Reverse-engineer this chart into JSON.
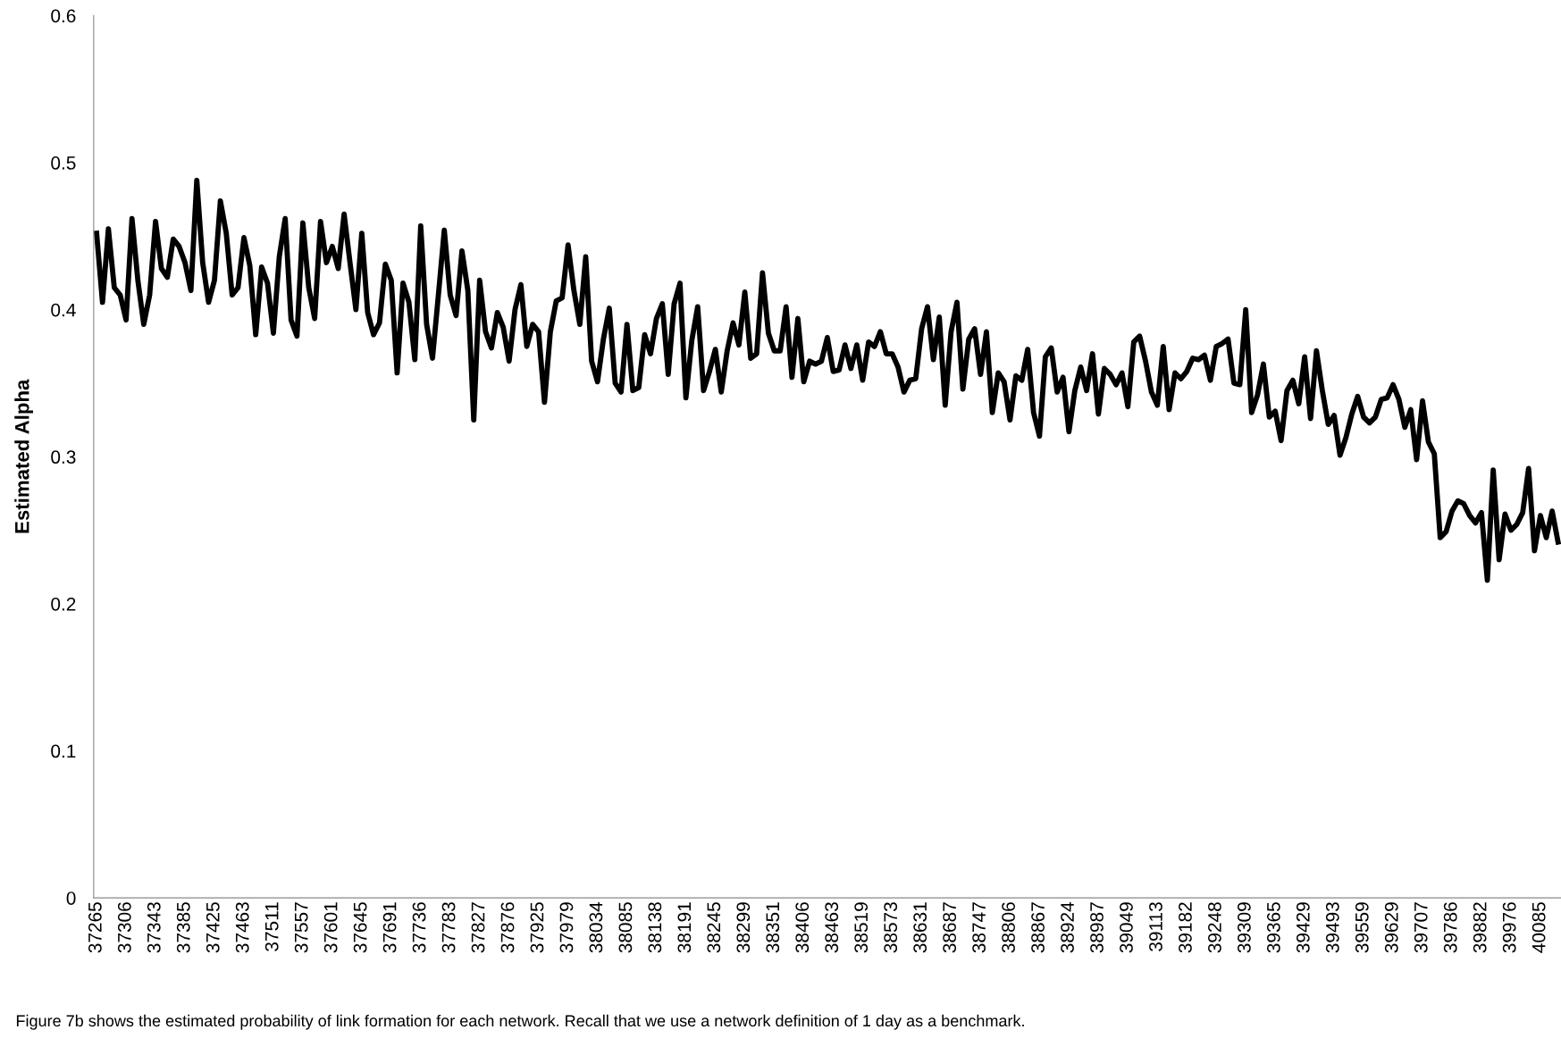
{
  "chart_data": {
    "type": "line",
    "ylabel": "Estimated Alpha",
    "annotations": [
      "Figure 7b shows the estimated probability of link formation for each network. Recall that we use a network definition of 1 day as a benchmark."
    ],
    "categories": [
      "37265",
      null,
      null,
      null,
      null,
      "37306",
      null,
      null,
      null,
      null,
      "37343",
      null,
      null,
      null,
      null,
      "37385",
      null,
      null,
      null,
      null,
      "37425",
      null,
      null,
      null,
      null,
      "37463",
      null,
      null,
      null,
      null,
      "37511",
      null,
      null,
      null,
      null,
      "37557",
      null,
      null,
      null,
      null,
      "37601",
      null,
      null,
      null,
      null,
      "37645",
      null,
      null,
      null,
      null,
      "37691",
      null,
      null,
      null,
      null,
      "37736",
      null,
      null,
      null,
      null,
      "37783",
      null,
      null,
      null,
      null,
      "37827",
      null,
      null,
      null,
      null,
      "37876",
      null,
      null,
      null,
      null,
      "37925",
      null,
      null,
      null,
      null,
      "37979",
      null,
      null,
      null,
      null,
      "38034",
      null,
      null,
      null,
      null,
      "38085",
      null,
      null,
      null,
      null,
      "38138",
      null,
      null,
      null,
      null,
      "38191",
      null,
      null,
      null,
      null,
      "38245",
      null,
      null,
      null,
      null,
      "38299",
      null,
      null,
      null,
      null,
      "38351",
      null,
      null,
      null,
      null,
      "38406",
      null,
      null,
      null,
      null,
      "38463",
      null,
      null,
      null,
      null,
      "38519",
      null,
      null,
      null,
      null,
      "38573",
      null,
      null,
      null,
      null,
      "38631",
      null,
      null,
      null,
      null,
      "38687",
      null,
      null,
      null,
      null,
      "38747",
      null,
      null,
      null,
      null,
      "38806",
      null,
      null,
      null,
      null,
      "38867",
      null,
      null,
      null,
      null,
      "38924",
      null,
      null,
      null,
      null,
      "38987",
      null,
      null,
      null,
      null,
      "39049",
      null,
      null,
      null,
      null,
      "39113",
      null,
      null,
      null,
      null,
      "39182",
      null,
      null,
      null,
      null,
      "39248",
      null,
      null,
      null,
      null,
      "39309",
      null,
      null,
      null,
      null,
      "39365",
      null,
      null,
      null,
      null,
      "39429",
      null,
      null,
      null,
      null,
      "39493",
      null,
      null,
      null,
      null,
      "39559",
      null,
      null,
      null,
      null,
      "39629",
      null,
      null,
      null,
      null,
      "39707",
      null,
      null,
      null,
      null,
      "39786",
      null,
      null,
      null,
      null,
      "39882",
      null,
      null,
      null,
      null,
      "39976",
      null,
      null,
      null,
      null,
      "40085",
      null,
      null,
      null
    ],
    "series": [
      {
        "color": "#000000",
        "values": [
          0.452,
          0.405,
          0.455,
          0.415,
          0.41,
          0.393,
          0.462,
          0.42,
          0.39,
          0.41,
          0.46,
          0.428,
          0.422,
          0.448,
          0.443,
          0.432,
          0.413,
          0.488,
          0.432,
          0.405,
          0.42,
          0.474,
          0.452,
          0.41,
          0.415,
          0.449,
          0.43,
          0.383,
          0.429,
          0.418,
          0.384,
          0.436,
          0.462,
          0.393,
          0.382,
          0.459,
          0.415,
          0.394,
          0.46,
          0.432,
          0.443,
          0.428,
          0.465,
          0.432,
          0.4,
          0.452,
          0.398,
          0.383,
          0.391,
          0.431,
          0.42,
          0.357,
          0.418,
          0.405,
          0.366,
          0.457,
          0.39,
          0.367,
          0.41,
          0.454,
          0.41,
          0.396,
          0.44,
          0.413,
          0.325,
          0.42,
          0.385,
          0.374,
          0.398,
          0.388,
          0.365,
          0.4,
          0.417,
          0.375,
          0.39,
          0.385,
          0.337,
          0.385,
          0.406,
          0.408,
          0.444,
          0.413,
          0.39,
          0.436,
          0.365,
          0.351,
          0.38,
          0.401,
          0.35,
          0.344,
          0.39,
          0.345,
          0.347,
          0.383,
          0.37,
          0.394,
          0.404,
          0.356,
          0.404,
          0.418,
          0.34,
          0.379,
          0.402,
          0.345,
          0.358,
          0.373,
          0.344,
          0.372,
          0.391,
          0.376,
          0.412,
          0.367,
          0.37,
          0.425,
          0.384,
          0.372,
          0.372,
          0.402,
          0.354,
          0.394,
          0.351,
          0.365,
          0.363,
          0.365,
          0.381,
          0.358,
          0.359,
          0.376,
          0.36,
          0.376,
          0.352,
          0.378,
          0.375,
          0.385,
          0.37,
          0.37,
          0.361,
          0.344,
          0.352,
          0.353,
          0.387,
          0.402,
          0.366,
          0.395,
          0.335,
          0.385,
          0.405,
          0.346,
          0.38,
          0.387,
          0.356,
          0.385,
          0.33,
          0.357,
          0.351,
          0.325,
          0.355,
          0.352,
          0.373,
          0.33,
          0.314,
          0.368,
          0.374,
          0.344,
          0.354,
          0.317,
          0.345,
          0.361,
          0.345,
          0.37,
          0.329,
          0.36,
          0.356,
          0.349,
          0.357,
          0.334,
          0.378,
          0.382,
          0.365,
          0.344,
          0.335,
          0.375,
          0.332,
          0.357,
          0.353,
          0.358,
          0.367,
          0.366,
          0.369,
          0.352,
          0.375,
          0.377,
          0.38,
          0.35,
          0.349,
          0.4,
          0.33,
          0.342,
          0.363,
          0.327,
          0.331,
          0.311,
          0.345,
          0.352,
          0.336,
          0.368,
          0.326,
          0.372,
          0.345,
          0.322,
          0.328,
          0.301,
          0.313,
          0.329,
          0.341,
          0.327,
          0.323,
          0.327,
          0.339,
          0.34,
          0.349,
          0.339,
          0.32,
          0.332,
          0.298,
          0.338,
          0.31,
          0.302,
          0.245,
          0.249,
          0.263,
          0.27,
          0.268,
          0.26,
          0.255,
          0.262,
          0.216,
          0.291,
          0.23,
          0.261,
          0.25,
          0.254,
          0.262,
          0.292,
          0.236,
          0.26,
          0.245,
          0.263,
          0.242
        ]
      }
    ],
    "ylim": [
      0,
      0.6
    ],
    "yticks": [
      0,
      0.1,
      0.2,
      0.3,
      0.4,
      0.5,
      0.6
    ],
    "grid": false,
    "legend": false,
    "marker": "none",
    "line_style": "solid"
  }
}
